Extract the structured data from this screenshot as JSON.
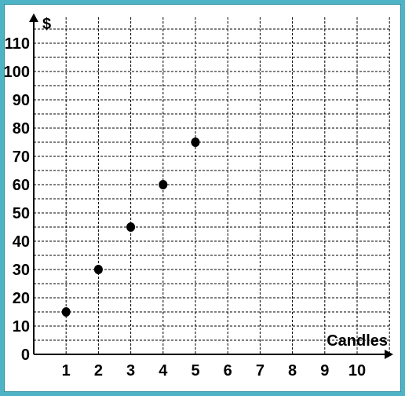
{
  "chart_data": {
    "type": "scatter",
    "xlabel": "Candles",
    "ylabel": "$",
    "xlim": [
      0,
      10
    ],
    "ylim": [
      0,
      115
    ],
    "x_ticks": [
      "1",
      "2",
      "3",
      "4",
      "5",
      "6",
      "7",
      "8",
      "9",
      "10"
    ],
    "y_ticks": [
      "0",
      "10",
      "20",
      "30",
      "40",
      "50",
      "60",
      "70",
      "80",
      "90",
      "100",
      "110"
    ],
    "grid": true,
    "points": [
      {
        "x": 1,
        "y": 15
      },
      {
        "x": 2,
        "y": 30
      },
      {
        "x": 3,
        "y": 45
      },
      {
        "x": 4,
        "y": 60
      },
      {
        "x": 5,
        "y": 75
      }
    ]
  },
  "colors": {
    "background": "#4fb3c6",
    "plot_background": "#ffffff",
    "grid": "#000000",
    "axis": "#000000",
    "point": "#000000"
  }
}
